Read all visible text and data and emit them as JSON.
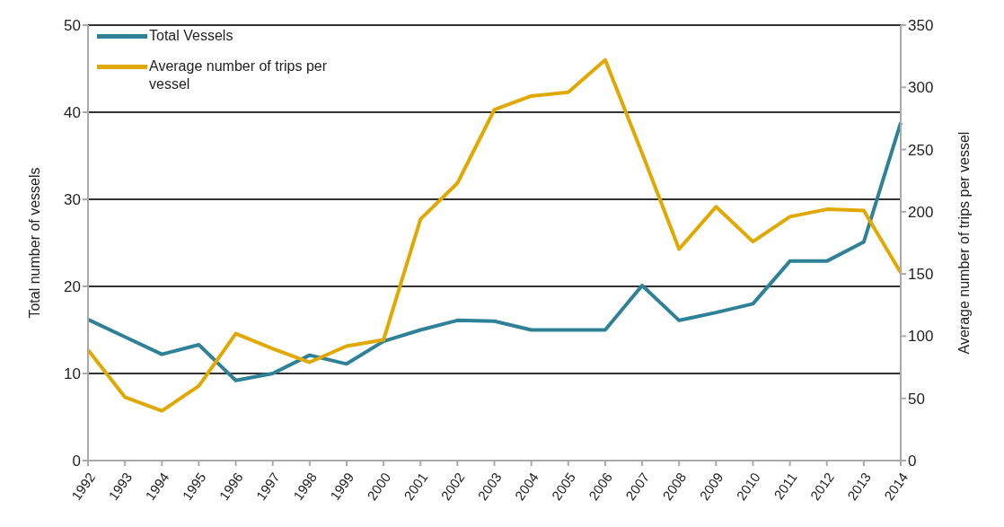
{
  "chart_data": {
    "type": "line",
    "categories": [
      "1992",
      "1993",
      "1994",
      "1995",
      "1996",
      "1997",
      "1998",
      "1999",
      "2000",
      "2001",
      "2002",
      "2003",
      "2004",
      "2005",
      "2006",
      "2007",
      "2008",
      "2009",
      "2010",
      "2011",
      "2012",
      "2013",
      "2014"
    ],
    "series": [
      {
        "name": "Total Vessels",
        "color": "#2e8196",
        "values": [
          16.2,
          14.2,
          12.2,
          13.3,
          9.2,
          10,
          12.1,
          11.1,
          13.7,
          15,
          16.1,
          16,
          15,
          15,
          15,
          20.1,
          16.1,
          17,
          18,
          22.9,
          22.9,
          25.1,
          38.8
        ]
      },
      {
        "name": "Average number of trips per vessel",
        "color": "#e0a800",
        "axis": "y2",
        "values": [
          89,
          51,
          40,
          60,
          102,
          90,
          79,
          92,
          97,
          194,
          223,
          282,
          293,
          296,
          322,
          247,
          170,
          204,
          176,
          196,
          202,
          201,
          151
        ]
      }
    ],
    "ylabel": "Total number of vessels",
    "y2label": "Average number of trips per vessel",
    "ylim": [
      0,
      50
    ],
    "yticks": [
      0,
      10,
      20,
      30,
      40,
      50
    ],
    "y2lim": [
      0,
      350
    ],
    "y2ticks": [
      0,
      50,
      100,
      150,
      200,
      250,
      300,
      350
    ],
    "grid": "y",
    "legend": "top left"
  }
}
